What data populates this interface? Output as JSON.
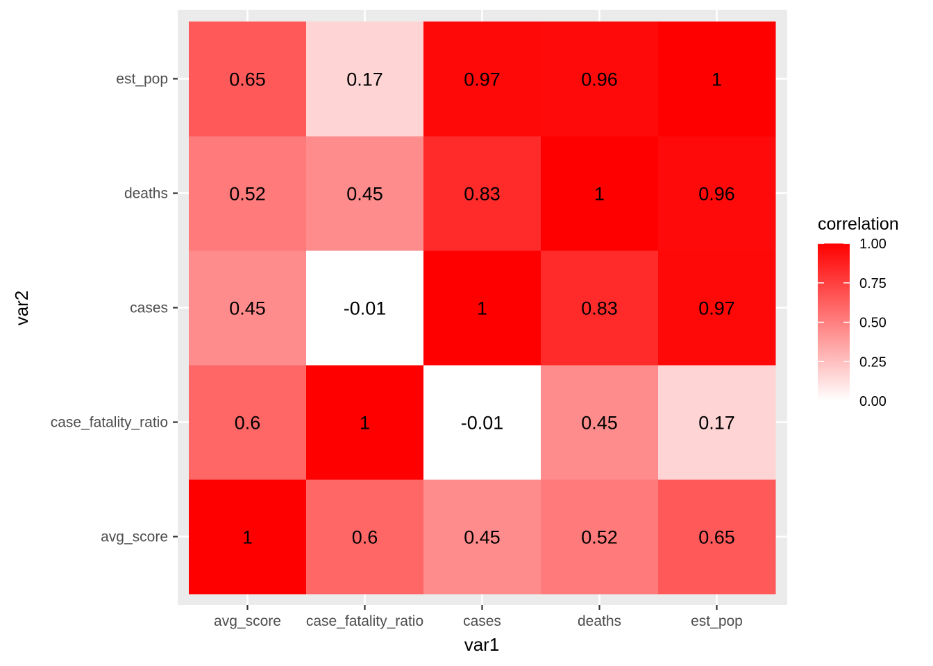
{
  "chart_data": {
    "type": "heatmap",
    "xlabel": "var1",
    "ylabel": "var2",
    "x_categories": [
      "avg_score",
      "case_fatality_ratio",
      "cases",
      "deaths",
      "est_pop"
    ],
    "y_categories": [
      "avg_score",
      "case_fatality_ratio",
      "cases",
      "deaths",
      "est_pop"
    ],
    "values": [
      [
        1,
        0.6,
        0.45,
        0.52,
        0.65
      ],
      [
        0.6,
        1,
        -0.01,
        0.45,
        0.17
      ],
      [
        0.45,
        -0.01,
        1,
        0.83,
        0.97
      ],
      [
        0.52,
        0.45,
        0.83,
        1,
        0.96
      ],
      [
        0.65,
        0.17,
        0.97,
        0.96,
        1
      ]
    ],
    "legend": {
      "title": "correlation",
      "position": "right",
      "range": [
        0,
        1
      ],
      "ticks": [
        "0.00",
        "0.25",
        "0.50",
        "0.75",
        "1.00"
      ],
      "low_color": "#ffffff",
      "high_color": "#ff0000"
    },
    "panel_background": "#ebebeb",
    "grid": true
  }
}
